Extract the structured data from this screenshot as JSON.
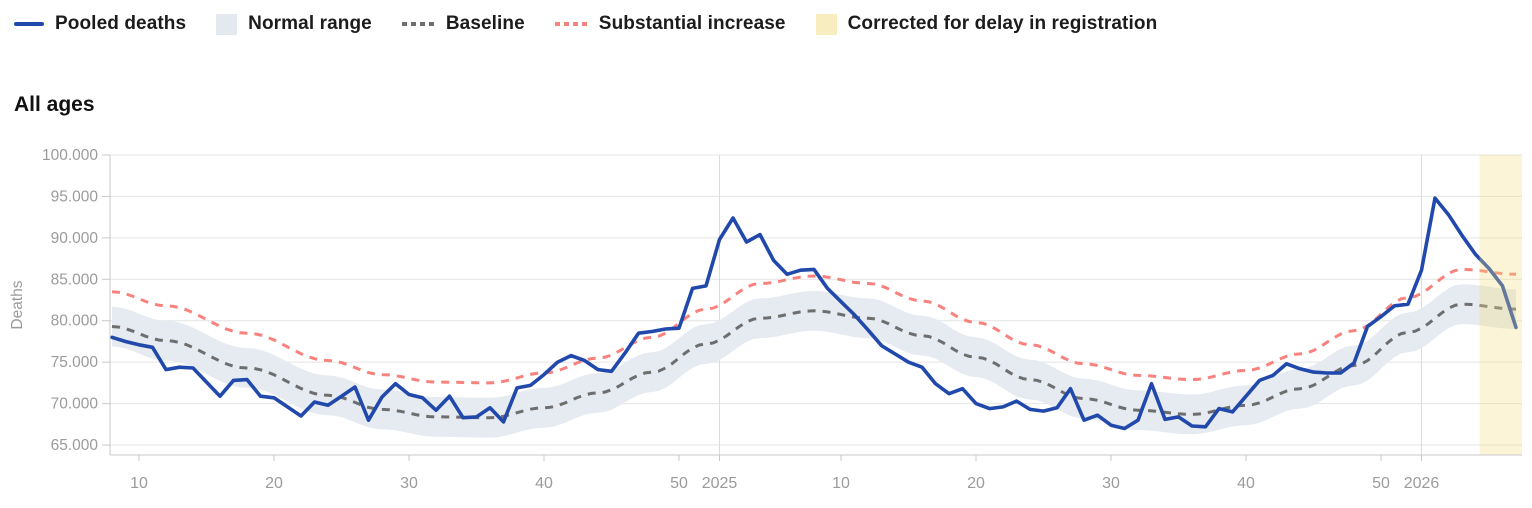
{
  "page": {
    "background": "#ffffff"
  },
  "legend": {
    "items": [
      {
        "label": "Pooled deaths",
        "swatch": "line",
        "color": "#2149ac"
      },
      {
        "label": "Normal range",
        "swatch": "square",
        "color": "#e4e9f0"
      },
      {
        "label": "Baseline",
        "swatch": "dotted-line",
        "color": "#6e6e6e"
      },
      {
        "label": "Substantial increase",
        "swatch": "dotted-line",
        "color": "#f8827e"
      },
      {
        "label": "Corrected for delay in registration",
        "swatch": "square",
        "color": "#f8edbe"
      }
    ]
  },
  "chart": {
    "title": "All ages",
    "ylabel": "Deaths"
  },
  "chart_data": {
    "type": "line",
    "title": "All ages",
    "xlabel": "",
    "ylabel": "Deaths",
    "x_unit": "ISO week, from 2024-W08 (index 0) to 2026-W08 (index 104)",
    "ylim": [
      63800,
      100000
    ],
    "grid": "horizontal gridlines every 5.000; vertical lines at year boundaries 2025 and 2026",
    "legend_position": "top-left, outside plot",
    "y_ticks": [
      {
        "value": 65000,
        "label": "65.000"
      },
      {
        "value": 70000,
        "label": "70.000"
      },
      {
        "value": 75000,
        "label": "75.000"
      },
      {
        "value": 80000,
        "label": "80.000"
      },
      {
        "value": 85000,
        "label": "85.000"
      },
      {
        "value": 90000,
        "label": "90.000"
      },
      {
        "value": 95000,
        "label": "95.000"
      },
      {
        "value": 100000,
        "label": "100.000"
      }
    ],
    "x_ticks": [
      {
        "idx": 2,
        "label": "10",
        "year_line": false
      },
      {
        "idx": 12,
        "label": "20",
        "year_line": false
      },
      {
        "idx": 22,
        "label": "30",
        "year_line": false
      },
      {
        "idx": 32,
        "label": "40",
        "year_line": false
      },
      {
        "idx": 42,
        "label": "50",
        "year_line": false
      },
      {
        "idx": 45,
        "label": "2025",
        "year_line": true
      },
      {
        "idx": 54,
        "label": "10",
        "year_line": false
      },
      {
        "idx": 64,
        "label": "20",
        "year_line": false
      },
      {
        "idx": 74,
        "label": "30",
        "year_line": false
      },
      {
        "idx": 84,
        "label": "40",
        "year_line": false
      },
      {
        "idx": 94,
        "label": "50",
        "year_line": false
      },
      {
        "idx": 97,
        "label": "2026",
        "year_line": true
      }
    ],
    "series": [
      {
        "name": "Pooled deaths",
        "type": "line",
        "color": "#2149ac",
        "values": [
          78000,
          77500,
          77100,
          76800,
          74100,
          74400,
          74300,
          72600,
          70900,
          72800,
          72900,
          70900,
          70700,
          69600,
          68500,
          70200,
          69800,
          70900,
          72000,
          68000,
          70800,
          72400,
          71100,
          70700,
          69200,
          70900,
          68300,
          68400,
          69500,
          67800,
          71900,
          72200,
          73500,
          75000,
          75800,
          75200,
          74100,
          73900,
          76100,
          78500,
          78700,
          79000,
          79100,
          83900,
          84200,
          89800,
          92400,
          89500,
          90400,
          87300,
          85600,
          86100,
          86200,
          83900,
          82300,
          80700,
          78900,
          77000,
          76000,
          75000,
          74400,
          72400,
          71200,
          71800,
          70000,
          69400,
          69600,
          70300,
          69300,
          69100,
          69500,
          71800,
          68000,
          68600,
          67400,
          67000,
          68000,
          72400,
          68100,
          68400,
          67300,
          67200,
          69400,
          69000,
          70900,
          72800,
          73400,
          74800,
          74200,
          73800,
          73700,
          73700,
          74900,
          79300,
          80500,
          81800,
          82000,
          86100,
          94800,
          92800,
          90300,
          88000,
          86300,
          84200,
          79200
        ]
      },
      {
        "name": "Baseline",
        "type": "dashed-line",
        "color": "#6e6e6e",
        "anchors": [
          [
            0,
            79300
          ],
          [
            4,
            77600
          ],
          [
            10,
            74300
          ],
          [
            16,
            71000
          ],
          [
            20,
            69300
          ],
          [
            24,
            68400
          ],
          [
            28,
            68300
          ],
          [
            32,
            69500
          ],
          [
            36,
            71300
          ],
          [
            40,
            73800
          ],
          [
            44,
            77200
          ],
          [
            48,
            80300
          ],
          [
            52,
            81200
          ],
          [
            56,
            80300
          ],
          [
            60,
            78200
          ],
          [
            64,
            75600
          ],
          [
            68,
            72900
          ],
          [
            72,
            70600
          ],
          [
            76,
            69200
          ],
          [
            80,
            68700
          ],
          [
            84,
            69800
          ],
          [
            88,
            71800
          ],
          [
            92,
            74600
          ],
          [
            96,
            78600
          ],
          [
            100,
            82000
          ],
          [
            104,
            81400
          ]
        ]
      },
      {
        "name": "Substantial increase",
        "type": "dashed-line",
        "color": "#f8827e",
        "offset_above_baseline": 4200
      },
      {
        "name": "Normal range",
        "type": "band",
        "color": "#e6eaf1",
        "halfwidth_around_baseline": 2400
      },
      {
        "name": "Corrected for delay in registration",
        "type": "region",
        "color": "#f2dd7e",
        "opacity": 0.32,
        "start_idx": 101.3,
        "end_idx": 104.6
      }
    ],
    "axis": {
      "line_color": "#c9c9c9",
      "grid_color": "#e4e4e4",
      "year_line_color": "#dcdcdc",
      "label_color": "#9b9b9b"
    }
  }
}
